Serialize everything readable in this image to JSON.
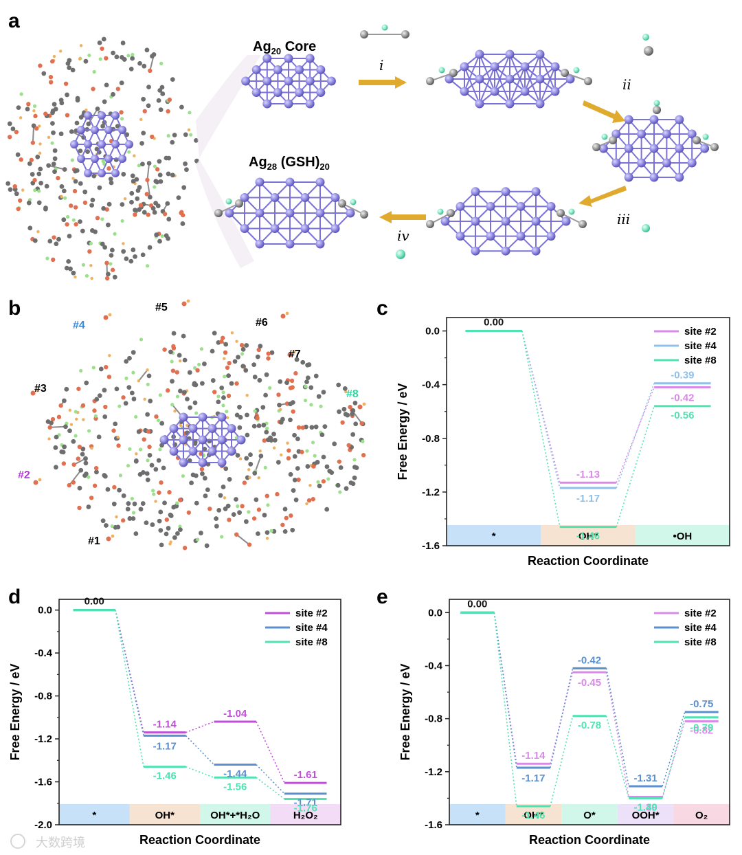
{
  "panel_letters": [
    "a",
    "b",
    "c",
    "d",
    "e"
  ],
  "panel_a": {
    "core_label": "Ag",
    "core_sub": "20",
    "core_suffix": " Core",
    "cluster_label": "Ag",
    "cluster_sub": "28",
    "cluster_mid": " (GSH)",
    "cluster_sub2": "20",
    "steps": [
      "i",
      "ii",
      "iii",
      "iv"
    ]
  },
  "panel_b": {
    "sites": [
      {
        "label": "#1",
        "color": "#111111"
      },
      {
        "label": "#2",
        "color": "#b23ad6"
      },
      {
        "label": "#3",
        "color": "#111111"
      },
      {
        "label": "#4",
        "color": "#3a8ad6"
      },
      {
        "label": "#5",
        "color": "#111111"
      },
      {
        "label": "#6",
        "color": "#111111"
      },
      {
        "label": "#7",
        "color": "#111111"
      },
      {
        "label": "#8",
        "color": "#2ad6a0"
      }
    ]
  },
  "watermark": "大数跨境",
  "chart_data": [
    {
      "panel": "c",
      "type": "line",
      "title": "",
      "xlabel": "Reaction Coordinate",
      "ylabel": "Free Energy / eV",
      "ylim": [
        -1.6,
        0.1
      ],
      "yticks": [
        "0.0",
        "-0.4",
        "-0.8",
        "-1.2",
        "-1.6"
      ],
      "categories": [
        "*",
        "OH*",
        "•OH"
      ],
      "category_colors": [
        "#c7e2f8",
        "#f7e3d1",
        "#d1f6ea"
      ],
      "legend_position": "top-right",
      "series": [
        {
          "name": "site #2",
          "color": "#d98ae8",
          "values": [
            0.0,
            -1.13,
            -0.42
          ],
          "labels": [
            "",
            "-1.13",
            "-0.42"
          ]
        },
        {
          "name": "site #4",
          "color": "#8ec0ea",
          "values": [
            0.0,
            -1.17,
            -0.39
          ],
          "labels": [
            "",
            "-1.17",
            "-0.39"
          ]
        },
        {
          "name": "site #8",
          "color": "#4fe3b2",
          "values": [
            0.0,
            -1.46,
            -0.56
          ],
          "labels": [
            "0.00",
            "-1.46",
            "-0.56"
          ]
        }
      ]
    },
    {
      "panel": "d",
      "type": "line",
      "title": "",
      "xlabel": "Reaction Coordinate",
      "ylabel": "Free Energy / eV",
      "ylim": [
        -2.0,
        0.1
      ],
      "yticks": [
        "0.0",
        "-0.4",
        "-0.8",
        "-1.2",
        "-1.6",
        "-2.0"
      ],
      "categories": [
        "*",
        "OH*",
        "OH*+*H₂O",
        "H₂O₂"
      ],
      "category_colors": [
        "#c7e2f8",
        "#f7e3d1",
        "#d1f6ea",
        "#f3ddf6"
      ],
      "legend_position": "top-right",
      "series": [
        {
          "name": "site #2",
          "color": "#c04fd8",
          "values": [
            0.0,
            -1.14,
            -1.04,
            -1.61
          ],
          "labels": [
            "",
            "-1.14",
            "-1.04",
            "-1.61"
          ]
        },
        {
          "name": "site #4",
          "color": "#5a8fd0",
          "values": [
            0.0,
            -1.17,
            -1.44,
            -1.71
          ],
          "labels": [
            "",
            "-1.17",
            "-1.44",
            "-1.71"
          ]
        },
        {
          "name": "site #8",
          "color": "#4fe3b2",
          "values": [
            0.0,
            -1.46,
            -1.56,
            -1.76
          ],
          "labels": [
            "0.00",
            "-1.46",
            "-1.56",
            "-1.76"
          ]
        }
      ]
    },
    {
      "panel": "e",
      "type": "line",
      "title": "",
      "xlabel": "Reaction Coordinate",
      "ylabel": "Free Energy / eV",
      "ylim": [
        -1.6,
        0.1
      ],
      "yticks": [
        "0.0",
        "-0.4",
        "-0.8",
        "-1.2",
        "-1.6"
      ],
      "categories": [
        "*",
        "OH*",
        "O*",
        "OOH*",
        "O₂"
      ],
      "category_colors": [
        "#c7e2f8",
        "#f7e3d1",
        "#d1f6ea",
        "#ece1f8",
        "#f8d8e2"
      ],
      "legend_position": "top-right",
      "series": [
        {
          "name": "site #2",
          "color": "#d98ae8",
          "values": [
            0.0,
            -1.14,
            -0.45,
            -1.39,
            -0.82
          ],
          "labels": [
            "",
            "-1.14",
            "-0.45",
            "-1.39",
            "-0.82"
          ]
        },
        {
          "name": "site #4",
          "color": "#5a8fd0",
          "values": [
            0.0,
            -1.17,
            -0.42,
            -1.31,
            -0.75
          ],
          "labels": [
            "",
            "-1.17",
            "-0.42",
            "-1.31",
            "-0.75"
          ]
        },
        {
          "name": "site #8",
          "color": "#4fe3b2",
          "values": [
            0.0,
            -1.46,
            -0.78,
            -1.4,
            -0.79
          ],
          "labels": [
            "0.00",
            "-1.46",
            "-0.78",
            "-1.40",
            "-0.79"
          ]
        }
      ]
    }
  ]
}
